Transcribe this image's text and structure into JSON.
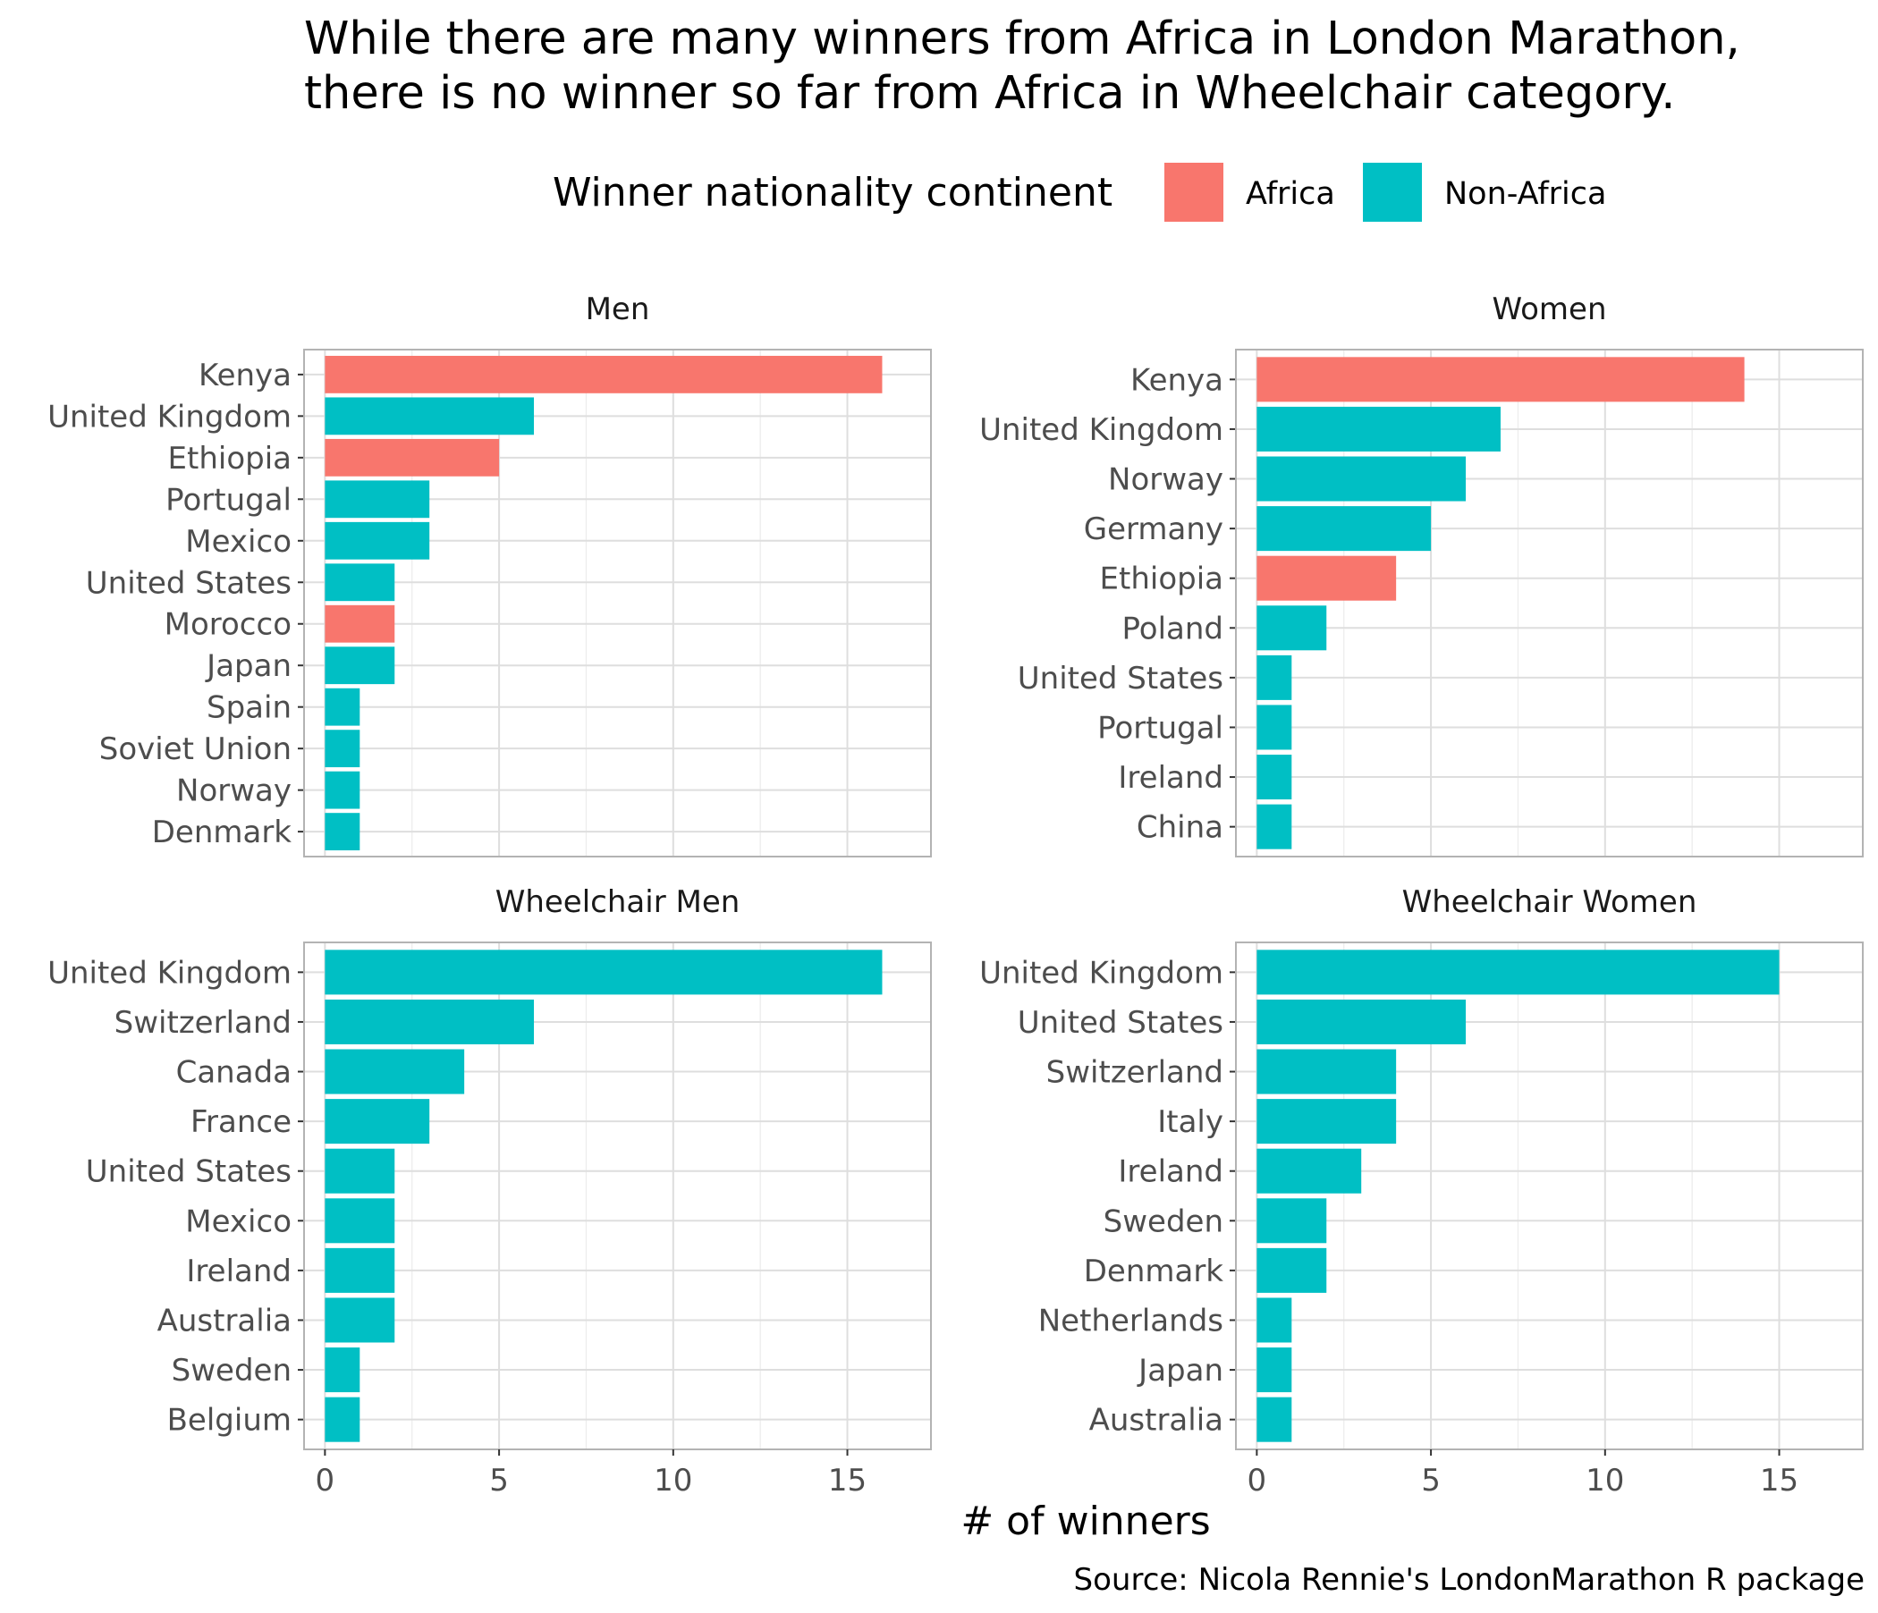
{
  "title_lines": [
    "While there are many winners from Africa in London Marathon,",
    "there is no winner so far from Africa in Wheelchair category."
  ],
  "legend": {
    "title": "Winner nationality continent",
    "entries": [
      {
        "key": "Africa",
        "label": "Africa",
        "color": "#F8766D"
      },
      {
        "key": "Non-Africa",
        "label": "Non-Africa",
        "color": "#00BFC4"
      }
    ],
    "placement": "top"
  },
  "x_axis_title": "# of winners",
  "caption": "Source: Nicola Rennie's LondonMarathon R package",
  "chart_data": [
    {
      "type": "bar",
      "orientation": "horizontal",
      "panel": "Men",
      "categories": [
        "Kenya",
        "United Kingdom",
        "Ethiopia",
        "Portugal",
        "Mexico",
        "United States",
        "Morocco",
        "Japan",
        "Spain",
        "Soviet Union",
        "Norway",
        "Denmark"
      ],
      "values": [
        16,
        6,
        5,
        3,
        3,
        2,
        2,
        2,
        1,
        1,
        1,
        1
      ],
      "groups": [
        "Africa",
        "Non-Africa",
        "Africa",
        "Non-Africa",
        "Non-Africa",
        "Non-Africa",
        "Africa",
        "Non-Africa",
        "Non-Africa",
        "Non-Africa",
        "Non-Africa",
        "Non-Africa"
      ],
      "xlim": [
        0,
        16.8
      ],
      "xticks": [
        0,
        5,
        10,
        15
      ],
      "grid": true
    },
    {
      "type": "bar",
      "orientation": "horizontal",
      "panel": "Women",
      "categories": [
        "Kenya",
        "United Kingdom",
        "Norway",
        "Germany",
        "Ethiopia",
        "Poland",
        "United States",
        "Portugal",
        "Ireland",
        "China"
      ],
      "values": [
        14,
        7,
        6,
        5,
        4,
        2,
        1,
        1,
        1,
        1
      ],
      "groups": [
        "Africa",
        "Non-Africa",
        "Non-Africa",
        "Non-Africa",
        "Africa",
        "Non-Africa",
        "Non-Africa",
        "Non-Africa",
        "Non-Africa",
        "Non-Africa"
      ],
      "xlim": [
        0,
        16.8
      ],
      "xticks": [
        0,
        5,
        10,
        15
      ],
      "grid": true
    },
    {
      "type": "bar",
      "orientation": "horizontal",
      "panel": "Wheelchair Men",
      "categories": [
        "United Kingdom",
        "Switzerland",
        "Canada",
        "France",
        "United States",
        "Mexico",
        "Ireland",
        "Australia",
        "Sweden",
        "Belgium"
      ],
      "values": [
        16,
        6,
        4,
        3,
        2,
        2,
        2,
        2,
        1,
        1
      ],
      "groups": [
        "Non-Africa",
        "Non-Africa",
        "Non-Africa",
        "Non-Africa",
        "Non-Africa",
        "Non-Africa",
        "Non-Africa",
        "Non-Africa",
        "Non-Africa",
        "Non-Africa"
      ],
      "xlim": [
        0,
        16.8
      ],
      "xticks": [
        0,
        5,
        10,
        15
      ],
      "grid": true
    },
    {
      "type": "bar",
      "orientation": "horizontal",
      "panel": "Wheelchair Women",
      "categories": [
        "United Kingdom",
        "United States",
        "Switzerland",
        "Italy",
        "Ireland",
        "Sweden",
        "Denmark",
        "Netherlands",
        "Japan",
        "Australia"
      ],
      "values": [
        15,
        6,
        4,
        4,
        3,
        2,
        2,
        1,
        1,
        1
      ],
      "groups": [
        "Non-Africa",
        "Non-Africa",
        "Non-Africa",
        "Non-Africa",
        "Non-Africa",
        "Non-Africa",
        "Non-Africa",
        "Non-Africa",
        "Non-Africa",
        "Non-Africa"
      ],
      "xlim": [
        0,
        16.8
      ],
      "xticks": [
        0,
        5,
        10,
        15
      ],
      "grid": true
    }
  ]
}
